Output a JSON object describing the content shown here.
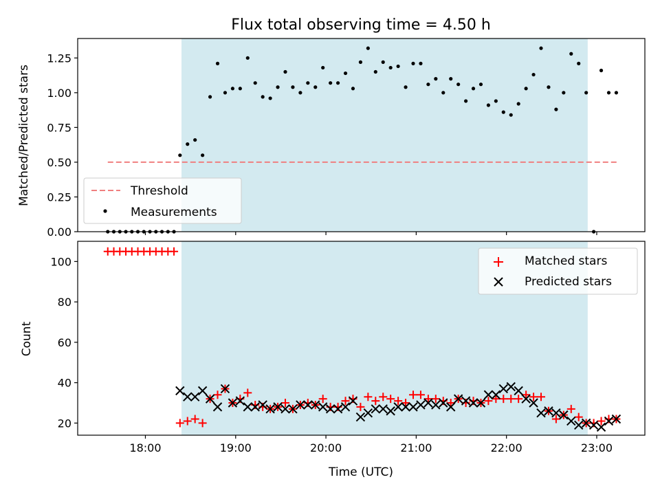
{
  "figure_title": "Flux total observing time = 4.50 h",
  "chart_data": [
    {
      "type": "scatter",
      "ylabel": "Matched/Predicted stars",
      "xlabel": "",
      "xlim": [
        "17:15",
        "23:32"
      ],
      "ylim": [
        0,
        1.39
      ],
      "yticks": [
        0.0,
        0.25,
        0.5,
        0.75,
        1.0,
        1.25
      ],
      "ytick_labels": [
        "0.00",
        "0.25",
        "0.50",
        "0.75",
        "1.00",
        "1.25"
      ],
      "x_ticks": [
        "18:00",
        "19:00",
        "20:00",
        "21:00",
        "22:00",
        "23:00"
      ],
      "shaded_span": [
        "18:24",
        "22:54"
      ],
      "shaded_color": "#d3eaf0",
      "grid": false,
      "legend_position": "lower-left",
      "series": [
        {
          "name": "Threshold",
          "kind": "dashed-line",
          "color": "#f07f7f",
          "x": [
            "17:35",
            "23:15"
          ],
          "y": [
            0.5,
            0.5
          ]
        },
        {
          "name": "Measurements",
          "kind": "dots",
          "color": "#000000",
          "x": [
            "17:35",
            "17:39",
            "17:43",
            "17:47",
            "17:51",
            "17:55",
            "17:59",
            "18:03",
            "18:07",
            "18:11",
            "18:15",
            "18:19",
            "18:23",
            "18:28",
            "18:33",
            "18:38",
            "18:43",
            "18:48",
            "18:53",
            "18:58",
            "19:03",
            "19:08",
            "19:13",
            "19:18",
            "19:23",
            "19:28",
            "19:33",
            "19:38",
            "19:43",
            "19:48",
            "19:53",
            "19:58",
            "20:03",
            "20:08",
            "20:13",
            "20:18",
            "20:23",
            "20:28",
            "20:33",
            "20:38",
            "20:43",
            "20:48",
            "20:53",
            "20:58",
            "21:03",
            "21:08",
            "21:13",
            "21:18",
            "21:23",
            "21:28",
            "21:33",
            "21:38",
            "21:43",
            "21:48",
            "21:53",
            "21:58",
            "22:03",
            "22:08",
            "22:13",
            "22:18",
            "22:23",
            "22:28",
            "22:33",
            "22:38",
            "22:43",
            "22:48",
            "22:53",
            "22:58",
            "23:03",
            "23:08",
            "23:13"
          ],
          "y": [
            0,
            0,
            0,
            0,
            0,
            0,
            0,
            0,
            0,
            0,
            0,
            0,
            0.55,
            0.63,
            0.66,
            0.55,
            0.97,
            1.21,
            1.0,
            1.03,
            1.03,
            1.25,
            1.07,
            0.97,
            0.96,
            1.04,
            1.15,
            1.04,
            1.0,
            1.07,
            1.04,
            1.18,
            1.07,
            1.07,
            1.14,
            1.03,
            1.22,
            1.32,
            1.15,
            1.22,
            1.18,
            1.19,
            1.04,
            1.21,
            1.21,
            1.06,
            1.1,
            1.0,
            1.1,
            1.06,
            0.94,
            1.03,
            1.06,
            0.91,
            0.94,
            0.86,
            0.84,
            0.92,
            1.03,
            1.13,
            1.32,
            1.04,
            0.88,
            1.0,
            1.28,
            1.21,
            1.0,
            0,
            1.16,
            1.0,
            1.0
          ]
        }
      ]
    },
    {
      "type": "scatter",
      "ylabel": "Count",
      "xlabel": "Time (UTC)",
      "xlim": [
        "17:15",
        "23:32"
      ],
      "ylim": [
        14,
        110
      ],
      "yticks": [
        20,
        40,
        60,
        80,
        100
      ],
      "ytick_labels": [
        "20",
        "40",
        "60",
        "80",
        "100"
      ],
      "x_ticks": [
        "18:00",
        "19:00",
        "20:00",
        "21:00",
        "22:00",
        "23:00"
      ],
      "shaded_span": [
        "18:24",
        "22:54"
      ],
      "shaded_color": "#d3eaf0",
      "grid": false,
      "legend_position": "top-right",
      "series": [
        {
          "name": "Matched stars",
          "kind": "plus",
          "color": "#ff0000",
          "x": [
            "17:35",
            "17:39",
            "17:43",
            "17:47",
            "17:51",
            "17:55",
            "17:59",
            "18:03",
            "18:07",
            "18:11",
            "18:15",
            "18:19",
            "18:23",
            "18:28",
            "18:33",
            "18:38",
            "18:43",
            "18:48",
            "18:53",
            "18:58",
            "19:03",
            "19:08",
            "19:13",
            "19:18",
            "19:23",
            "19:28",
            "19:33",
            "19:38",
            "19:43",
            "19:48",
            "19:53",
            "19:58",
            "20:03",
            "20:08",
            "20:13",
            "20:18",
            "20:23",
            "20:28",
            "20:33",
            "20:38",
            "20:43",
            "20:48",
            "20:53",
            "20:58",
            "21:03",
            "21:08",
            "21:13",
            "21:18",
            "21:23",
            "21:28",
            "21:33",
            "21:38",
            "21:43",
            "21:48",
            "21:53",
            "21:58",
            "22:03",
            "22:08",
            "22:13",
            "22:18",
            "22:23",
            "22:28",
            "22:33",
            "22:38",
            "22:43",
            "22:48",
            "22:53",
            "22:58",
            "23:03",
            "23:08",
            "23:13"
          ],
          "y": [
            105,
            105,
            105,
            105,
            105,
            105,
            105,
            105,
            105,
            105,
            105,
            105,
            20,
            21,
            22,
            20,
            32,
            34,
            37,
            30,
            32,
            35,
            29,
            28,
            27,
            28,
            30,
            27,
            29,
            30,
            29,
            32,
            28,
            28,
            31,
            32,
            28,
            33,
            31,
            33,
            32,
            31,
            30,
            34,
            34,
            32,
            32,
            31,
            30,
            32,
            30,
            31,
            30,
            31,
            32,
            32,
            32,
            32,
            34,
            33,
            33,
            26,
            22,
            24,
            27,
            23,
            20,
            20,
            21,
            22,
            22
          ]
        },
        {
          "name": "Predicted stars",
          "kind": "cross",
          "color": "#000000",
          "x": [
            "18:23",
            "18:28",
            "18:33",
            "18:38",
            "18:43",
            "18:48",
            "18:53",
            "18:58",
            "19:03",
            "19:08",
            "19:13",
            "19:18",
            "19:23",
            "19:28",
            "19:33",
            "19:38",
            "19:43",
            "19:48",
            "19:53",
            "19:58",
            "20:03",
            "20:08",
            "20:13",
            "20:18",
            "20:23",
            "20:28",
            "20:33",
            "20:38",
            "20:43",
            "20:48",
            "20:53",
            "20:58",
            "21:03",
            "21:08",
            "21:13",
            "21:18",
            "21:23",
            "21:28",
            "21:33",
            "21:38",
            "21:43",
            "21:48",
            "21:53",
            "21:58",
            "22:03",
            "22:08",
            "22:13",
            "22:18",
            "22:23",
            "22:28",
            "22:33",
            "22:38",
            "22:43",
            "22:48",
            "22:53",
            "22:58",
            "23:03",
            "23:08",
            "23:13"
          ],
          "y": [
            36,
            33,
            33,
            36,
            32,
            28,
            37,
            30,
            31,
            28,
            28,
            29,
            27,
            28,
            27,
            27,
            29,
            29,
            29,
            28,
            27,
            27,
            28,
            31,
            23,
            25,
            27,
            27,
            26,
            28,
            28,
            28,
            29,
            30,
            29,
            30,
            28,
            32,
            31,
            30,
            30,
            34,
            34,
            37,
            38,
            36,
            32,
            30,
            25,
            26,
            25,
            24,
            21,
            19,
            20,
            19,
            18,
            21,
            22
          ]
        }
      ]
    }
  ]
}
